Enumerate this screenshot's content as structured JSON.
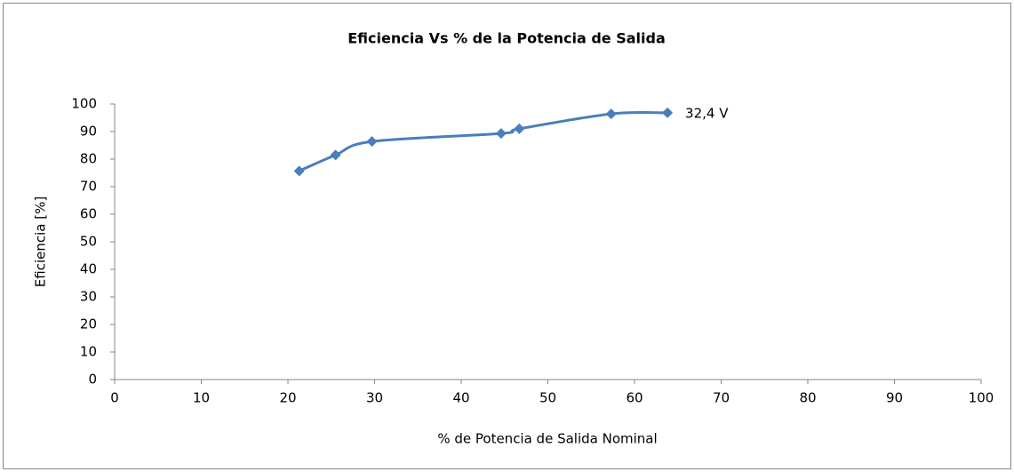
{
  "chart_data": {
    "type": "scatter",
    "title": "Eficiencia Vs % de la Potencia de Salida",
    "x_label": "% de Potencia de Salida Nominal",
    "y_label": "Eficiencia [%]",
    "series": [
      {
        "color": "#4a7ebb",
        "x": [
          21.3,
          25.5,
          29.7,
          44.6,
          46.7,
          57.3,
          63.8
        ],
        "values": [
          75.7,
          81.5,
          86.4,
          89.3,
          91.0,
          96.4,
          96.8
        ]
      }
    ],
    "annotation": "32,4 V",
    "smooth": true,
    "xlim": [
      0,
      100
    ],
    "ylim": [
      0,
      100
    ],
    "xticks": [
      0,
      10,
      20,
      30,
      40,
      50,
      60,
      70,
      80,
      90,
      100
    ],
    "yticks": [
      0,
      10,
      20,
      30,
      40,
      50,
      60,
      70,
      80,
      90,
      100
    ]
  }
}
